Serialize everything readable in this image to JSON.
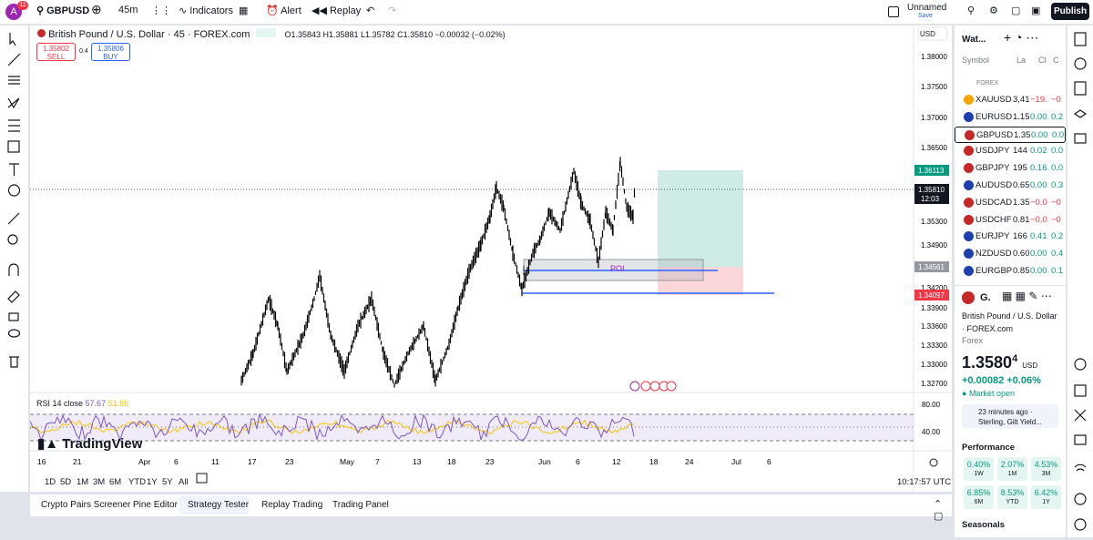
{
  "top_bar": {
    "avatar": "A",
    "badge": "11",
    "symbol": "GBPUSD",
    "interval": "45m",
    "indicators": "Indicators",
    "alert": "Alert",
    "replay": "Replay",
    "layout_name": "Unnamed",
    "save": "Save",
    "publish": "Publish"
  },
  "chart": {
    "title": "British Pound / U.S. Dollar · 45 · FOREX.com",
    "ohlc": "O1.35843 H1.35881 L1.35782 C1.35810 −0.00032 (−0.02%)",
    "sell_price": "1.35802",
    "sell": "SELL",
    "spread": "0.4",
    "buy_price": "1.35806",
    "buy": "BUY",
    "currency": "USD",
    "price_axis": [
      "1.38000",
      "1.37500",
      "1.37000",
      "1.36500",
      "1.35300",
      "1.34900",
      "1.34200",
      "1.33900",
      "1.33600",
      "1.33300",
      "1.33000",
      "1.32700"
    ],
    "price_tags": [
      {
        "label": "1.36113",
        "color": "#089981"
      },
      {
        "label": "1.35810",
        "color": "#131722"
      },
      {
        "label": "1.34561",
        "color": "#9598a1"
      },
      {
        "label": "1.34097",
        "color": "#f23645"
      }
    ],
    "countdown": "12:03",
    "poi": "POI",
    "rsi_legend": "RSI 14 close",
    "rsi_value_1": "57.67",
    "rsi_value_2": "51.86",
    "rsi_axis": [
      "80.00",
      "40.00"
    ],
    "time_axis": [
      "16",
      "21",
      "Apr",
      "6",
      "11",
      "17",
      "23",
      "May",
      "7",
      "13",
      "18",
      "23",
      "Jun",
      "6",
      "12",
      "18",
      "24",
      "Jul",
      "6"
    ],
    "logo": "TradingView"
  },
  "range_bar": {
    "ranges": [
      "1D",
      "5D",
      "1M",
      "3M",
      "6M",
      "YTD",
      "1Y",
      "5Y",
      "All"
    ],
    "clock": "10:17:57 UTC"
  },
  "bottom_tabs": [
    "Crypto Pairs Screener",
    "Pine Editor",
    "Strategy Tester",
    "Replay Trading",
    "Trading Panel"
  ],
  "watchlist": {
    "title": "Wat...",
    "columns": [
      "Symbol",
      "La",
      "Cl",
      "C"
    ],
    "group": "FOREX",
    "rows": [
      [
        "XAUUSD",
        "3,41",
        "−19.",
        "−0"
      ],
      [
        "EURUSD",
        "1.15",
        "0.00",
        "0.2"
      ],
      [
        "GBPUSD",
        "1.35",
        "0.00",
        "0.0"
      ],
      [
        "USDJPY",
        "144",
        "0.02",
        "0.0"
      ],
      [
        "GBPJPY",
        "195",
        "0.16",
        "0.0"
      ],
      [
        "AUDUSD",
        "0.65",
        "0.00",
        "0.3"
      ],
      [
        "USDCAD",
        "1.35",
        "−0.0",
        "−0"
      ],
      [
        "USDCHF",
        "0.81",
        "−0.0",
        "−0"
      ],
      [
        "EURJPY",
        "166",
        "0.41",
        "0.2"
      ],
      [
        "NZDUSD",
        "0.60",
        "0.00",
        "0.4"
      ],
      [
        "EURGBP",
        "0.85",
        "0.00",
        "0.1"
      ]
    ]
  },
  "details": {
    "symbol": "G.",
    "name": "British Pound / U.S. Dollar",
    "exchange": "FOREX.com",
    "type": "Forex",
    "last_price": "1.3580",
    "last_price_pip": "4",
    "currency": "USD",
    "change": "+0.00082",
    "change_pct": "+0.06%",
    "status": "Market open",
    "news_time": "23 minutes ago ·",
    "news_headline": "Sterling, Gilt Yield...",
    "performance_title": "Performance",
    "performance": [
      {
        "value": "0.40%",
        "period": "1W"
      },
      {
        "value": "2.07%",
        "period": "1M"
      },
      {
        "value": "4.53%",
        "period": "3M"
      },
      {
        "value": "6.85%",
        "period": "6M"
      },
      {
        "value": "8.53%",
        "period": "YTD"
      },
      {
        "value": "6.42%",
        "period": "1Y"
      }
    ],
    "seasonals": "Seasonals"
  }
}
